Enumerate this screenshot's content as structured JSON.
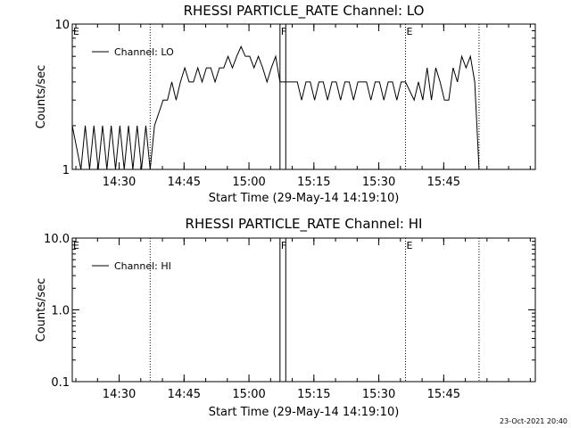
{
  "chart_data": [
    {
      "type": "line",
      "title": "RHESSI PARTICLE_RATE Channel: LO",
      "xlabel": "Start Time (29-May-14 14:19:10)",
      "ylabel": "Counts/sec",
      "yscale": "log",
      "ylim": [
        1,
        10
      ],
      "xlim": [
        "14:19:10",
        "16:06:10"
      ],
      "x_ticks": [
        "14:30",
        "14:45",
        "15:00",
        "15:15",
        "15:30",
        "15:45"
      ],
      "y_ticks": [
        "1",
        "10"
      ],
      "legend": {
        "placement": "top-left",
        "entries": [
          "Channel: LO"
        ]
      },
      "markers": [
        {
          "label": "E",
          "time": "14:19:10"
        },
        {
          "label": "F",
          "time": "15:07:10"
        },
        {
          "label": "E",
          "time": "15:36:10"
        }
      ],
      "dotted_lines": [
        "14:37:10",
        "15:36:10",
        "15:53:10"
      ],
      "band": {
        "start": "15:07:10",
        "end": "15:08:30"
      },
      "series": [
        {
          "name": "Channel: LO",
          "time": [
            "14:19:10",
            "14:21:10",
            "14:22:10",
            "14:23:10",
            "14:24:10",
            "14:25:10",
            "14:26:10",
            "14:27:10",
            "14:28:10",
            "14:29:10",
            "14:30:10",
            "14:31:10",
            "14:32:10",
            "14:33:10",
            "14:34:10",
            "14:35:10",
            "14:36:10",
            "14:37:10",
            "14:38:10",
            "14:40:10",
            "14:41:10",
            "14:42:10",
            "14:43:10",
            "14:44:10",
            "14:45:10",
            "14:46:10",
            "14:47:10",
            "14:48:10",
            "14:49:10",
            "14:50:10",
            "14:51:10",
            "14:52:10",
            "14:53:10",
            "14:54:10",
            "14:55:10",
            "14:56:10",
            "14:57:10",
            "14:58:10",
            "14:59:10",
            "15:00:10",
            "15:01:10",
            "15:02:10",
            "15:03:10",
            "15:04:10",
            "15:05:10",
            "15:06:10",
            "15:07:10",
            "15:09:10",
            "15:11:10",
            "15:12:10",
            "15:13:10",
            "15:14:10",
            "15:15:10",
            "15:16:10",
            "15:17:10",
            "15:18:10",
            "15:19:10",
            "15:20:10",
            "15:21:10",
            "15:22:10",
            "15:23:10",
            "15:24:10",
            "15:25:10",
            "15:26:10",
            "15:27:10",
            "15:28:10",
            "15:29:10",
            "15:30:10",
            "15:31:10",
            "15:32:10",
            "15:33:10",
            "15:34:10",
            "15:35:10",
            "15:36:10",
            "15:38:10",
            "15:39:10",
            "15:40:10",
            "15:41:10",
            "15:42:10",
            "15:43:10",
            "15:44:10",
            "15:45:10",
            "15:46:10",
            "15:47:10",
            "15:48:10",
            "15:49:10",
            "15:50:10",
            "15:51:10",
            "15:52:10",
            "15:53:10"
          ],
          "values": [
            2,
            1,
            2,
            1,
            2,
            1,
            2,
            1,
            2,
            1,
            2,
            1,
            2,
            1,
            2,
            1,
            2,
            1,
            2,
            3,
            3,
            4,
            3,
            4,
            5,
            4,
            4,
            5,
            4,
            5,
            5,
            4,
            5,
            5,
            6,
            5,
            6,
            7,
            6,
            6,
            5,
            6,
            5,
            4,
            5,
            6,
            4,
            4,
            4,
            3,
            4,
            4,
            3,
            4,
            4,
            3,
            4,
            4,
            3,
            4,
            4,
            3,
            4,
            4,
            4,
            3,
            4,
            4,
            3,
            4,
            4,
            3,
            4,
            4,
            3,
            4,
            3,
            5,
            3,
            5,
            4,
            3,
            3,
            5,
            4,
            6,
            5,
            6,
            4,
            1
          ]
        }
      ]
    },
    {
      "type": "line",
      "title": "RHESSI PARTICLE_RATE Channel: HI",
      "xlabel": "Start Time (29-May-14 14:19:10)",
      "ylabel": "Counts/sec",
      "yscale": "log",
      "ylim": [
        0.1,
        10
      ],
      "xlim": [
        "14:19:10",
        "16:06:10"
      ],
      "x_ticks": [
        "14:30",
        "14:45",
        "15:00",
        "15:15",
        "15:30",
        "15:45"
      ],
      "y_ticks": [
        "0.1",
        "1.0",
        "10.0"
      ],
      "legend": {
        "placement": "top-left",
        "entries": [
          "Channel: HI"
        ]
      },
      "markers": [
        {
          "label": "E",
          "time": "14:19:10"
        },
        {
          "label": "F",
          "time": "15:07:10"
        },
        {
          "label": "E",
          "time": "15:36:10"
        }
      ],
      "dotted_lines": [
        "14:37:10",
        "15:36:10",
        "15:53:10"
      ],
      "band": {
        "start": "15:07:10",
        "end": "15:08:30"
      },
      "series": [
        {
          "name": "Channel: HI",
          "time": [],
          "values": []
        }
      ]
    }
  ],
  "footer": {
    "timestamp": "23-Oct-2021 20:40"
  }
}
